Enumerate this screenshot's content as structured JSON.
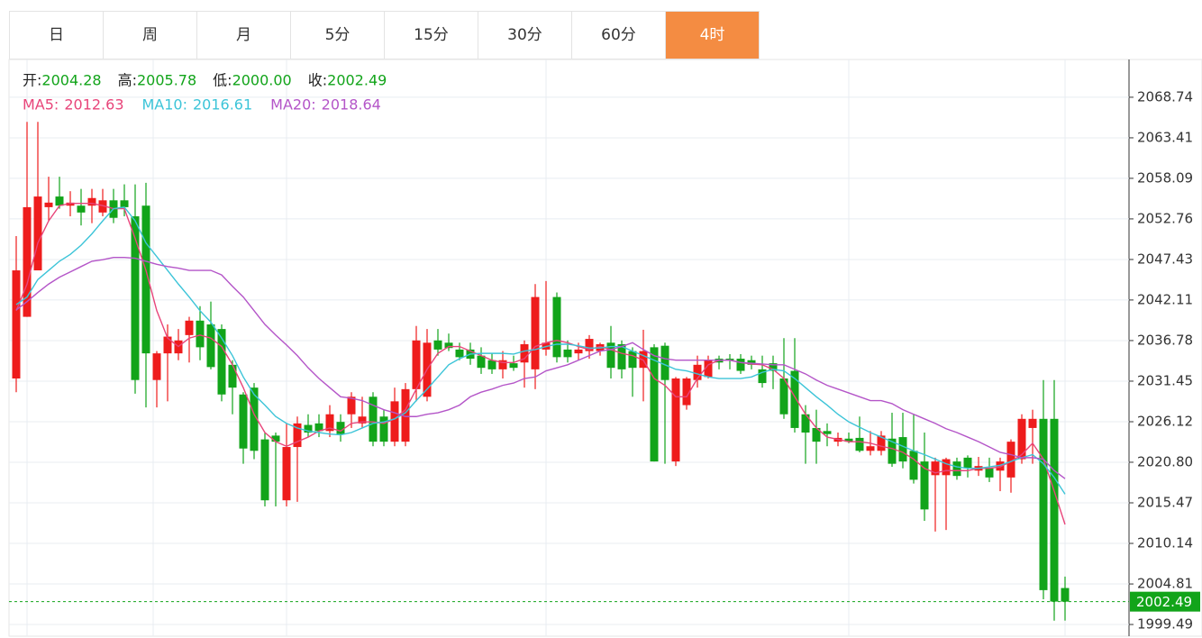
{
  "tabs": [
    {
      "label": "日"
    },
    {
      "label": "周"
    },
    {
      "label": "月"
    },
    {
      "label": "5分"
    },
    {
      "label": "15分"
    },
    {
      "label": "30分"
    },
    {
      "label": "60分"
    },
    {
      "label": "4时",
      "active": true
    }
  ],
  "chart_data": {
    "type": "candlestick",
    "quote": [
      {
        "label": "开:",
        "value": "2004.28"
      },
      {
        "label": "高:",
        "value": "2005.78"
      },
      {
        "label": "低:",
        "value": "2000.00"
      },
      {
        "label": "收:",
        "value": "2002.49"
      }
    ],
    "up_color": "#ee1c1c",
    "down_color": "#12a41a",
    "open": [
      2031.8,
      2039.9,
      2046.0,
      2054.3,
      2055.7,
      2054.5,
      2054.5,
      2054.5,
      2053.6,
      2055.2,
      2055.2,
      2053.1,
      2054.5,
      2031.6,
      2035.1,
      2035.1,
      2037.5,
      2039.4,
      2038.9,
      2038.3,
      2033.6,
      2029.7,
      2030.6,
      2023.8,
      2024.3,
      2015.8,
      2022.8,
      2025.7,
      2025.9,
      2024.9,
      2026.1,
      2027.1,
      2025.9,
      2029.4,
      2026.8,
      2023.5,
      2023.5,
      2030.4,
      2029.4,
      2036.8,
      2036.5,
      2035.6,
      2035.6,
      2034.8,
      2034.2,
      2033.0,
      2033.8,
      2033.9,
      2033.0,
      2035.6,
      2042.5,
      2035.6,
      2035.1,
      2035.4,
      2035.4,
      2036.5,
      2036.3,
      2035.4,
      2033.2,
      2035.9,
      2036.1,
      2020.9,
      2028.3,
      2031.6,
      2032.0,
      2034.4,
      2034.4,
      2034.4,
      2034.2,
      2033.0,
      2033.8,
      2031.8,
      2032.8,
      2027.1,
      2025.3,
      2024.9,
      2023.5,
      2023.9,
      2024.0,
      2022.3,
      2022.3,
      2023.9,
      2024.1,
      2022.3,
      2020.9,
      2019.1,
      2019.1,
      2020.9,
      2021.4,
      2019.7,
      2020.0,
      2019.7,
      2018.8,
      2021.2,
      2025.3,
      2026.5,
      2026.5,
      2004.28
    ],
    "high": [
      2050.5,
      2065.5,
      2065.5,
      2058.3,
      2058.3,
      2056.4,
      2056.7,
      2056.7,
      2056.7,
      2056.7,
      2057.3,
      2057.3,
      2057.5,
      2035.4,
      2038.9,
      2038.3,
      2039.9,
      2041.3,
      2041.9,
      2038.9,
      2034.2,
      2030.0,
      2031.2,
      2024.7,
      2024.7,
      2025.9,
      2026.8,
      2027.1,
      2027.1,
      2028.3,
      2027.1,
      2030.0,
      2029.4,
      2030.0,
      2027.7,
      2030.6,
      2031.2,
      2038.7,
      2038.3,
      2038.3,
      2037.7,
      2036.5,
      2036.5,
      2035.9,
      2035.1,
      2035.4,
      2034.8,
      2036.8,
      2044.2,
      2044.6,
      2043.1,
      2036.8,
      2036.5,
      2037.5,
      2036.5,
      2038.7,
      2036.8,
      2035.9,
      2038.2,
      2036.3,
      2036.5,
      2032.0,
      2032.0,
      2034.8,
      2034.8,
      2034.8,
      2035.0,
      2035.0,
      2034.8,
      2034.8,
      2034.8,
      2037.1,
      2037.1,
      2028.3,
      2027.7,
      2025.9,
      2024.7,
      2024.7,
      2026.8,
      2024.9,
      2024.9,
      2027.3,
      2027.3,
      2027.1,
      2024.7,
      2021.4,
      2021.4,
      2021.4,
      2021.7,
      2021.5,
      2021.4,
      2021.4,
      2023.8,
      2027.1,
      2027.7,
      2031.6,
      2031.6,
      2005.78
    ],
    "low": [
      2030.0,
      2039.9,
      2046.0,
      2052.5,
      2054.1,
      2053.1,
      2051.9,
      2052.2,
      2053.1,
      2052.2,
      2053.1,
      2029.8,
      2028.0,
      2028.0,
      2028.8,
      2034.2,
      2033.9,
      2034.2,
      2033.0,
      2028.8,
      2027.1,
      2020.6,
      2021.2,
      2015.0,
      2015.0,
      2015.0,
      2015.6,
      2024.1,
      2024.1,
      2024.1,
      2023.5,
      2025.3,
      2025.3,
      2022.9,
      2022.9,
      2022.9,
      2022.9,
      2028.8,
      2028.8,
      2034.8,
      2035.4,
      2034.2,
      2033.6,
      2032.4,
      2032.4,
      2031.8,
      2032.8,
      2030.6,
      2030.4,
      2034.8,
      2033.9,
      2033.9,
      2034.2,
      2034.4,
      2034.8,
      2031.8,
      2031.8,
      2029.4,
      2028.8,
      2020.9,
      2020.6,
      2020.3,
      2027.7,
      2030.6,
      2031.8,
      2033.0,
      2033.0,
      2032.4,
      2033.0,
      2030.6,
      2030.4,
      2026.5,
      2024.7,
      2020.6,
      2020.6,
      2022.9,
      2022.9,
      2023.3,
      2022.1,
      2021.7,
      2021.7,
      2020.2,
      2020.0,
      2018.0,
      2013.1,
      2011.7,
      2011.9,
      2018.5,
      2018.8,
      2019.0,
      2018.2,
      2017.0,
      2016.8,
      2020.6,
      2020.6,
      2002.8,
      2000.0,
      2000.0
    ],
    "close": [
      2046.0,
      2054.3,
      2055.7,
      2054.9,
      2054.5,
      2054.9,
      2053.6,
      2055.5,
      2055.2,
      2052.9,
      2054.3,
      2031.6,
      2035.1,
      2035.1,
      2037.3,
      2036.8,
      2039.4,
      2035.9,
      2033.3,
      2029.7,
      2030.6,
      2022.6,
      2022.3,
      2015.8,
      2023.5,
      2022.8,
      2025.9,
      2024.7,
      2024.9,
      2027.1,
      2024.5,
      2029.4,
      2026.8,
      2023.5,
      2023.5,
      2028.8,
      2030.4,
      2036.8,
      2036.5,
      2035.6,
      2035.8,
      2034.6,
      2034.4,
      2033.2,
      2033.0,
      2034.2,
      2033.2,
      2036.3,
      2042.5,
      2036.5,
      2034.6,
      2034.6,
      2035.6,
      2037.0,
      2036.3,
      2033.2,
      2033.0,
      2033.2,
      2035.4,
      2020.9,
      2031.6,
      2031.8,
      2031.8,
      2033.6,
      2034.2,
      2033.9,
      2034.2,
      2032.8,
      2033.6,
      2031.2,
      2032.8,
      2027.1,
      2025.3,
      2024.7,
      2023.5,
      2024.5,
      2024.0,
      2023.5,
      2022.3,
      2022.9,
      2024.3,
      2020.6,
      2020.9,
      2018.5,
      2014.6,
      2020.9,
      2021.2,
      2019.0,
      2020.0,
      2020.3,
      2018.8,
      2020.9,
      2023.5,
      2026.5,
      2026.5,
      2004.0,
      2002.5,
      2002.49
    ],
    "series": [
      {
        "name": "MA5:",
        "current_label": "2012.63",
        "color": "#e8457a",
        "values": [
          2040.7,
          2044.2,
          2049.6,
          2052.5,
          2054.5,
          2054.8,
          2054.8,
          2054.8,
          2054.5,
          2054.1,
          2054.1,
          2050.2,
          2046.0,
          2040.7,
          2037.1,
          2036.0,
          2037.1,
          2037.5,
          2037.1,
          2036.0,
          2033.6,
          2030.6,
          2027.1,
          2024.7,
          2023.5,
          2022.9,
          2023.5,
          2024.1,
          2024.9,
          2025.3,
          2024.9,
          2025.9,
          2026.1,
          2026.1,
          2025.9,
          2026.5,
          2027.7,
          2030.4,
          2033.0,
          2035.1,
          2036.0,
          2036.0,
          2035.4,
          2034.8,
          2034.2,
          2033.9,
          2033.9,
          2034.4,
          2036.0,
          2036.5,
          2036.8,
          2036.5,
          2036.0,
          2035.6,
          2036.0,
          2035.6,
          2035.1,
          2034.8,
          2034.2,
          2031.8,
          2030.9,
          2029.4,
          2029.4,
          2031.8,
          2033.6,
          2034.2,
          2034.2,
          2033.9,
          2033.7,
          2033.6,
          2033.0,
          2031.8,
          2029.4,
          2027.1,
          2025.3,
          2024.1,
          2023.8,
          2023.5,
          2023.5,
          2023.3,
          2022.9,
          2022.6,
          2022.1,
          2021.2,
          2020.0,
          2019.4,
          2019.7,
          2019.7,
          2019.7,
          2020.0,
          2020.0,
          2020.2,
          2020.9,
          2021.8,
          2023.3,
          2021.2,
          2017.0,
          2012.63
        ]
      },
      {
        "name": "MA10:",
        "current_label": "2016.61",
        "color": "#3cc4d8",
        "values": [
          2041.5,
          2042.5,
          2044.8,
          2046.0,
          2047.2,
          2048.1,
          2049.3,
          2050.8,
          2052.5,
          2054.1,
          2054.3,
          2052.5,
          2049.6,
          2047.8,
          2046.0,
          2044.2,
          2042.5,
          2040.7,
          2039.2,
          2037.1,
          2034.8,
          2032.0,
          2029.7,
          2028.3,
          2026.8,
          2025.9,
          2025.3,
          2024.9,
          2024.7,
          2024.5,
          2024.4,
          2024.7,
          2025.3,
          2025.9,
          2026.1,
          2026.5,
          2027.3,
          2028.9,
          2030.4,
          2032.0,
          2033.6,
          2034.4,
          2035.0,
          2035.1,
          2035.1,
          2035.1,
          2035.0,
          2035.4,
          2035.6,
          2036.0,
          2036.3,
          2036.3,
          2036.1,
          2035.8,
          2035.8,
          2036.0,
          2036.0,
          2035.4,
          2034.8,
          2034.2,
          2033.6,
          2033.0,
          2032.8,
          2032.4,
          2032.0,
          2031.8,
          2031.8,
          2031.8,
          2032.0,
          2032.6,
          2033.0,
          2032.8,
          2031.8,
          2030.6,
          2029.4,
          2028.3,
          2027.1,
          2026.1,
          2025.4,
          2024.7,
          2024.1,
          2023.5,
          2022.9,
          2022.3,
          2021.8,
          2021.2,
          2020.6,
          2020.2,
          2020.0,
          2020.0,
          2020.2,
          2020.4,
          2020.9,
          2021.4,
          2021.8,
          2020.6,
          2018.8,
          2016.61
        ]
      },
      {
        "name": "MA20:",
        "current_label": "2018.64",
        "color": "#b455c8",
        "values": [
          2040.8,
          2041.9,
          2043.1,
          2044.2,
          2045.1,
          2045.8,
          2046.5,
          2047.2,
          2047.4,
          2047.7,
          2047.7,
          2047.6,
          2047.2,
          2046.8,
          2046.5,
          2046.3,
          2046.0,
          2046.0,
          2046.0,
          2045.4,
          2043.9,
          2042.5,
          2040.7,
          2038.9,
          2037.5,
          2036.2,
          2034.8,
          2033.2,
          2031.8,
          2030.6,
          2029.4,
          2029.2,
          2028.9,
          2028.3,
          2027.7,
          2027.3,
          2026.8,
          2026.8,
          2027.1,
          2027.3,
          2027.7,
          2028.3,
          2029.4,
          2030.0,
          2030.4,
          2030.9,
          2031.2,
          2031.8,
          2032.0,
          2032.8,
          2033.2,
          2033.6,
          2034.2,
          2034.8,
          2035.4,
          2035.6,
          2036.0,
          2036.5,
          2035.6,
          2034.8,
          2034.4,
          2034.2,
          2034.2,
          2034.2,
          2034.2,
          2034.2,
          2034.2,
          2033.9,
          2033.8,
          2033.7,
          2033.6,
          2033.6,
          2033.0,
          2032.4,
          2031.6,
          2030.9,
          2030.4,
          2029.9,
          2029.4,
          2028.9,
          2028.9,
          2028.5,
          2027.7,
          2027.1,
          2026.5,
          2025.9,
          2025.2,
          2024.7,
          2024.1,
          2023.5,
          2022.8,
          2022.1,
          2021.8,
          2021.4,
          2021.4,
          2021.2,
          2019.7,
          2018.64
        ]
      }
    ],
    "last_price": 2002.49,
    "last_color": "#12a41a",
    "ylim": [
      1998.07,
      2073.7
    ],
    "yticks": [
      1999.49,
      2004.81,
      2010.14,
      2015.47,
      {
        "value": 2020.8,
        "label": "2020.80"
      },
      2026.12,
      2031.45,
      2036.78,
      2042.11,
      2047.43,
      2052.76,
      2058.09,
      2063.41,
      2068.74
    ],
    "grid": true
  }
}
